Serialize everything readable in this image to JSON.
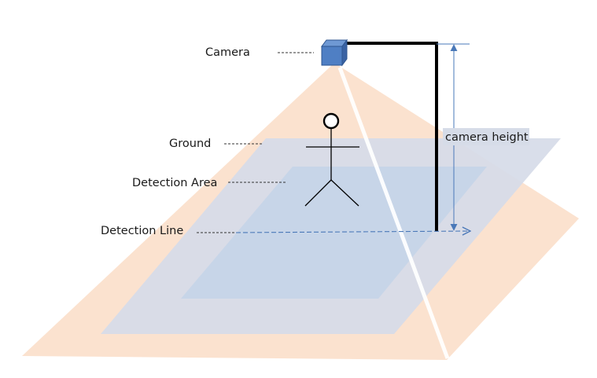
{
  "labels": {
    "camera": "Camera",
    "ground": "Ground",
    "detection_area": "Detection Area",
    "detection_line": "Detection Line",
    "camera_height": "camera height"
  },
  "colors": {
    "camera_field_of_view": "#fbe2cf",
    "ground_plane": "#d8e3f1",
    "detection_area": "#c5d5e9",
    "camera_box": "#4f7fc4",
    "camera_box_border": "#2e5590",
    "pole": "#000000",
    "height_arrow": "#4a78b8",
    "detection_line": "#4a78b8",
    "leader_line": "#333333",
    "figure": "#000000"
  },
  "icons": {
    "camera": "camera-cube-icon",
    "person": "stick-figure-icon"
  }
}
